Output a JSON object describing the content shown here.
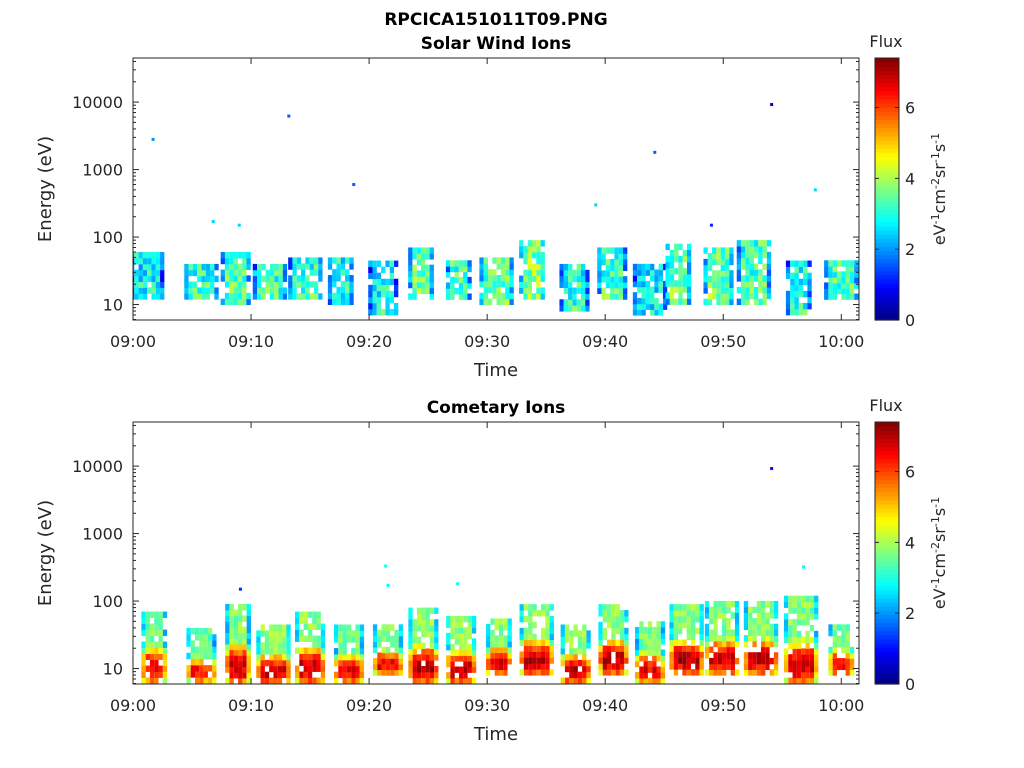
{
  "figure": {
    "title": "RPCICA151011T09.PNG"
  },
  "colorbar": {
    "label": "Flux",
    "unit_label": "eV-1cm-2sr-1s-1",
    "ticks": [
      0,
      2,
      4,
      6
    ],
    "range": [
      0,
      7.4
    ],
    "colormap": "jet"
  },
  "chart_data": [
    {
      "type": "heatmap",
      "title": "Solar Wind Ions",
      "xlabel": "Time",
      "ylabel": "Energy (eV)",
      "x_ticks": [
        "09:00",
        "09:10",
        "09:20",
        "09:30",
        "09:40",
        "09:50",
        "10:00"
      ],
      "xlim_minutes": [
        0,
        61.5
      ],
      "y_scale": "log",
      "y_ticks": [
        10,
        100,
        1000,
        10000
      ],
      "ylim": [
        5.9,
        45000
      ],
      "bursts": [
        {
          "t": 1.2,
          "emin": 12,
          "emax": 60,
          "level": 2.9
        },
        {
          "t": 5.8,
          "emin": 12,
          "emax": 40,
          "level": 3.3
        },
        {
          "t": 8.7,
          "emin": 10,
          "emax": 60,
          "level": 3.5
        },
        {
          "t": 11.6,
          "emin": 12,
          "emax": 40,
          "level": 3.3
        },
        {
          "t": 14.6,
          "emin": 12,
          "emax": 50,
          "level": 3.4
        },
        {
          "t": 17.6,
          "emin": 10,
          "emax": 50,
          "level": 3.1
        },
        {
          "t": 21.2,
          "emin": 7,
          "emax": 45,
          "level": 3.0
        },
        {
          "t": 24.4,
          "emin": 12,
          "emax": 70,
          "level": 3.7
        },
        {
          "t": 27.6,
          "emin": 12,
          "emax": 45,
          "level": 3.5
        },
        {
          "t": 30.8,
          "emin": 10,
          "emax": 50,
          "level": 3.6
        },
        {
          "t": 33.8,
          "emin": 12,
          "emax": 90,
          "level": 3.9
        },
        {
          "t": 37.4,
          "emin": 8,
          "emax": 40,
          "level": 3.2
        },
        {
          "t": 40.6,
          "emin": 12,
          "emax": 70,
          "level": 3.4
        },
        {
          "t": 43.8,
          "emin": 7,
          "emax": 40,
          "level": 2.8
        },
        {
          "t": 46.2,
          "emin": 10,
          "emax": 80,
          "level": 3.6
        },
        {
          "t": 49.6,
          "emin": 10,
          "emax": 70,
          "level": 3.7
        },
        {
          "t": 52.6,
          "emin": 10,
          "emax": 90,
          "level": 3.4
        },
        {
          "t": 56.4,
          "emin": 7,
          "emax": 45,
          "level": 3.2
        },
        {
          "t": 60.0,
          "emin": 12,
          "emax": 45,
          "level": 3.4
        }
      ],
      "points": [
        {
          "t": 1.7,
          "e": 2800,
          "level": 2.0
        },
        {
          "t": 6.8,
          "e": 170,
          "level": 2.5
        },
        {
          "t": 9.0,
          "e": 150,
          "level": 2.5
        },
        {
          "t": 13.2,
          "e": 6200,
          "level": 1.6
        },
        {
          "t": 18.7,
          "e": 600,
          "level": 1.6
        },
        {
          "t": 39.2,
          "e": 300,
          "level": 2.5
        },
        {
          "t": 44.2,
          "e": 1800,
          "level": 1.6
        },
        {
          "t": 49.0,
          "e": 150,
          "level": 1.2
        },
        {
          "t": 54.1,
          "e": 9200,
          "level": 0.6
        },
        {
          "t": 57.8,
          "e": 500,
          "level": 2.5
        }
      ]
    },
    {
      "type": "heatmap",
      "title": "Cometary Ions",
      "xlabel": "Time",
      "ylabel": "Energy (eV)",
      "x_ticks": [
        "09:00",
        "09:10",
        "09:20",
        "09:30",
        "09:40",
        "09:50",
        "10:00"
      ],
      "xlim_minutes": [
        0,
        61.5
      ],
      "y_scale": "log",
      "y_ticks": [
        10,
        100,
        1000,
        10000
      ],
      "ylim": [
        5.9,
        45000
      ],
      "bursts": [
        {
          "t": 1.8,
          "emin": 6,
          "emax": 70,
          "level": 6.6
        },
        {
          "t": 5.8,
          "emin": 6,
          "emax": 40,
          "level": 6.3
        },
        {
          "t": 8.9,
          "emin": 6,
          "emax": 90,
          "level": 6.8
        },
        {
          "t": 11.9,
          "emin": 6,
          "emax": 45,
          "level": 6.9
        },
        {
          "t": 15.0,
          "emin": 6,
          "emax": 70,
          "level": 6.9
        },
        {
          "t": 18.3,
          "emin": 6,
          "emax": 45,
          "level": 6.6
        },
        {
          "t": 21.6,
          "emin": 8,
          "emax": 45,
          "level": 6.6
        },
        {
          "t": 24.6,
          "emin": 6,
          "emax": 80,
          "level": 7.0
        },
        {
          "t": 27.8,
          "emin": 6,
          "emax": 60,
          "level": 6.9
        },
        {
          "t": 31.0,
          "emin": 8,
          "emax": 55,
          "level": 6.8
        },
        {
          "t": 34.2,
          "emin": 8,
          "emax": 90,
          "level": 6.9
        },
        {
          "t": 37.5,
          "emin": 6,
          "emax": 45,
          "level": 7.0
        },
        {
          "t": 40.7,
          "emin": 8,
          "emax": 90,
          "level": 6.9
        },
        {
          "t": 43.8,
          "emin": 6,
          "emax": 50,
          "level": 6.6
        },
        {
          "t": 46.9,
          "emin": 8,
          "emax": 90,
          "level": 6.9
        },
        {
          "t": 49.9,
          "emin": 8,
          "emax": 100,
          "level": 6.8
        },
        {
          "t": 53.2,
          "emin": 8,
          "emax": 100,
          "level": 6.8
        },
        {
          "t": 56.6,
          "emin": 6,
          "emax": 120,
          "level": 6.7
        },
        {
          "t": 60.0,
          "emin": 8,
          "emax": 45,
          "level": 6.5
        }
      ],
      "points": [
        {
          "t": 9.1,
          "e": 150,
          "level": 1.2
        },
        {
          "t": 21.4,
          "e": 330,
          "level": 2.8
        },
        {
          "t": 21.6,
          "e": 170,
          "level": 2.8
        },
        {
          "t": 27.5,
          "e": 180,
          "level": 2.8
        },
        {
          "t": 54.1,
          "e": 9200,
          "level": 1.0
        },
        {
          "t": 56.8,
          "e": 320,
          "level": 2.8
        }
      ]
    }
  ]
}
